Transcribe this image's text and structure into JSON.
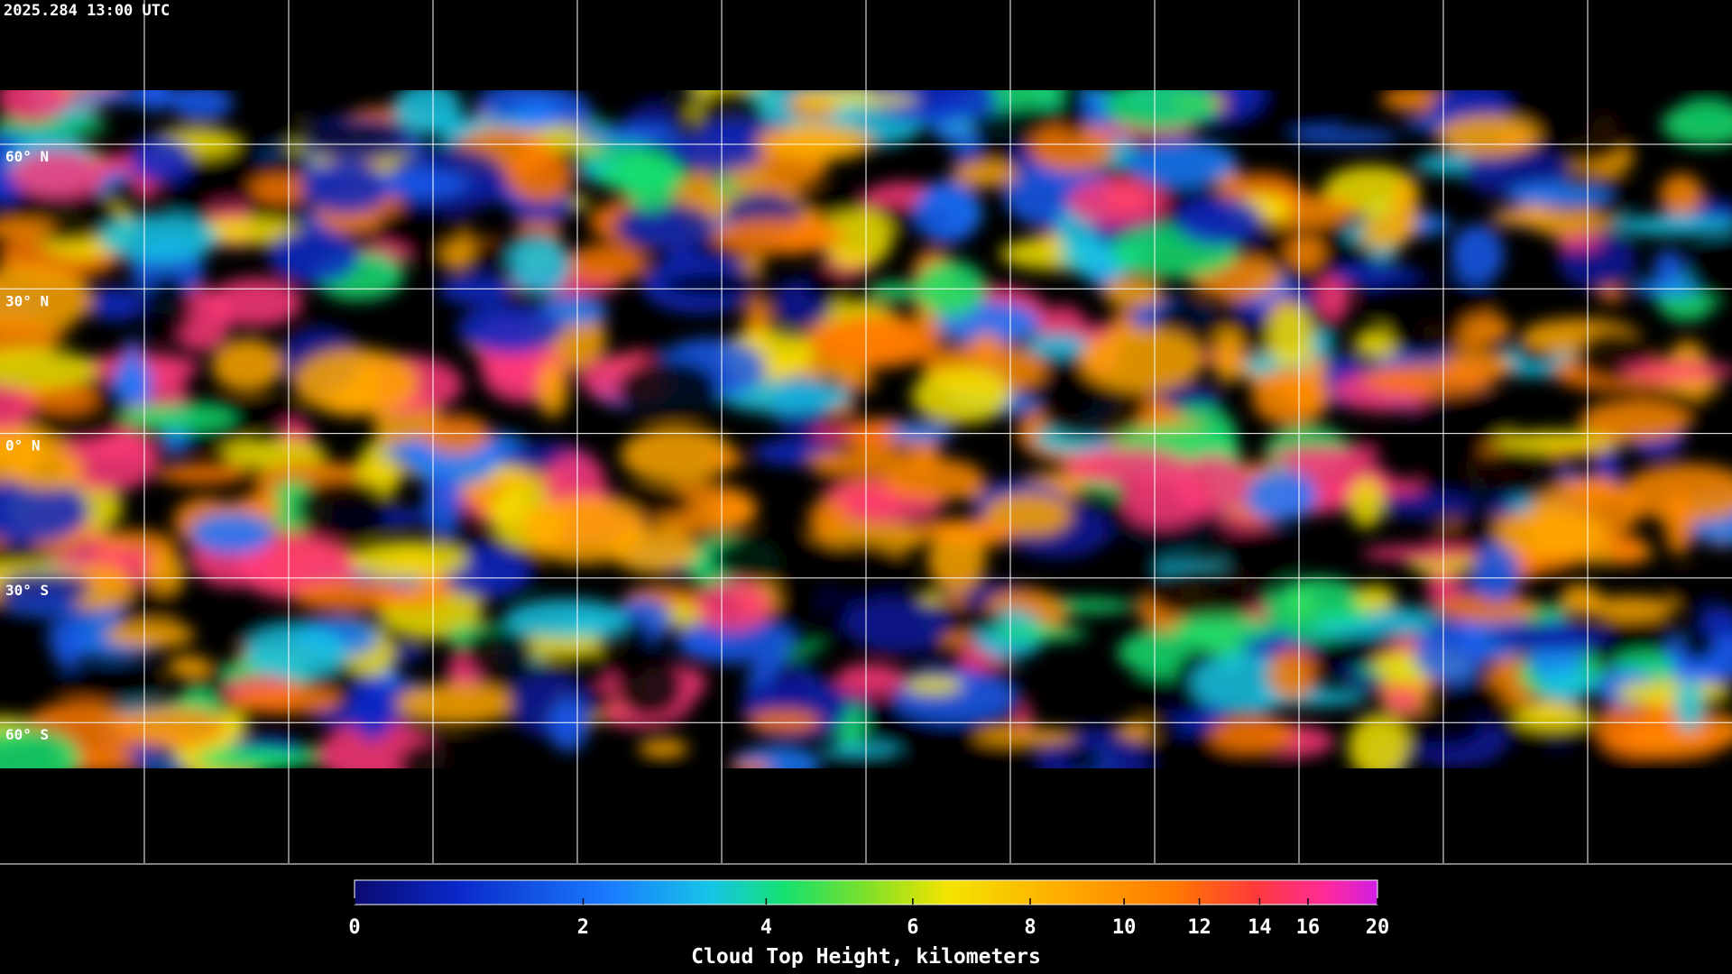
{
  "timestamp": "2025.284 13:00 UTC",
  "latitude_labels": [
    "60° N",
    "30° N",
    "0° N",
    "30° S",
    "60° S"
  ],
  "colorbar": {
    "title": "Cloud Top Height, kilometers",
    "range": [
      0,
      20
    ],
    "ticks": [
      0,
      2,
      4,
      6,
      8,
      10,
      12,
      14,
      16,
      20
    ]
  }
}
